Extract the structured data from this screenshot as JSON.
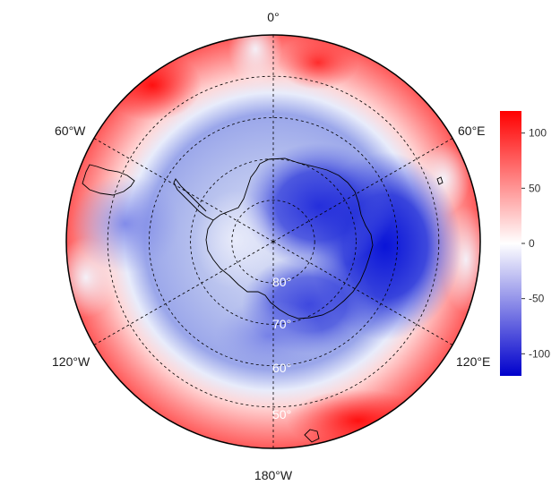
{
  "map": {
    "longitude_labels": {
      "lon_0": "0°",
      "lon_60w": "60°W",
      "lon_60e": "60°E",
      "lon_120w": "120°W",
      "lon_120e": "120°E",
      "lon_180": "180°W"
    },
    "latitude_labels": [
      "80°",
      "70°",
      "60°",
      "50°"
    ],
    "latitude_circles": [
      80,
      70,
      60,
      50
    ],
    "meridians": [
      0,
      60,
      120,
      180,
      240,
      300
    ],
    "outer_latitude": 40
  },
  "legend": {
    "ticks": [
      "100",
      "50",
      "0",
      "-50",
      "-100"
    ],
    "tick_values": [
      100,
      50,
      0,
      -50,
      -100
    ],
    "range": [
      -120,
      120
    ],
    "colors": {
      "low": "#0000cc",
      "mid": "#ffffff",
      "high": "#ff0000"
    }
  },
  "colors": {
    "gridline": "#000000",
    "coastline": "#000000",
    "lat_label": "#ffffff"
  }
}
